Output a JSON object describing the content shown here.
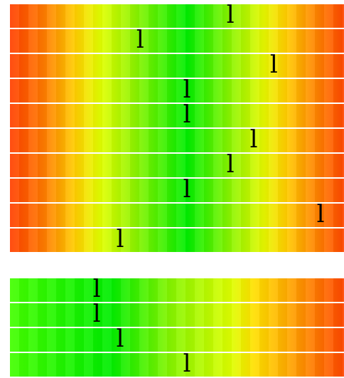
{
  "top_strips": [
    {
      "marker": "l",
      "value": 0.66
    },
    {
      "marker": "l",
      "value": 0.39
    },
    {
      "marker": "l",
      "value": 0.79
    },
    {
      "marker": "l",
      "value": 0.53
    },
    {
      "marker": "l",
      "value": 0.53
    },
    {
      "marker": "l",
      "value": 0.73
    },
    {
      "marker": "l",
      "value": 0.66
    },
    {
      "marker": "l",
      "value": 0.53
    },
    {
      "marker": "l",
      "value": 0.93
    },
    {
      "marker": "l",
      "value": 0.33
    }
  ],
  "bottom_strips": [
    {
      "marker": "l",
      "value": 0.26
    },
    {
      "marker": "l",
      "value": 0.26
    },
    {
      "marker": "l",
      "value": 0.33
    },
    {
      "marker": "l",
      "value": 0.53
    }
  ],
  "colors": {
    "centered_scale": [
      "#ff4000",
      "#ffd200",
      "#00ee00",
      "#ffd200",
      "#ff4800"
    ],
    "left_scale": [
      "#44ff00",
      "#00ee00",
      "#ddff00",
      "#ff8000",
      "#ff4800"
    ]
  }
}
